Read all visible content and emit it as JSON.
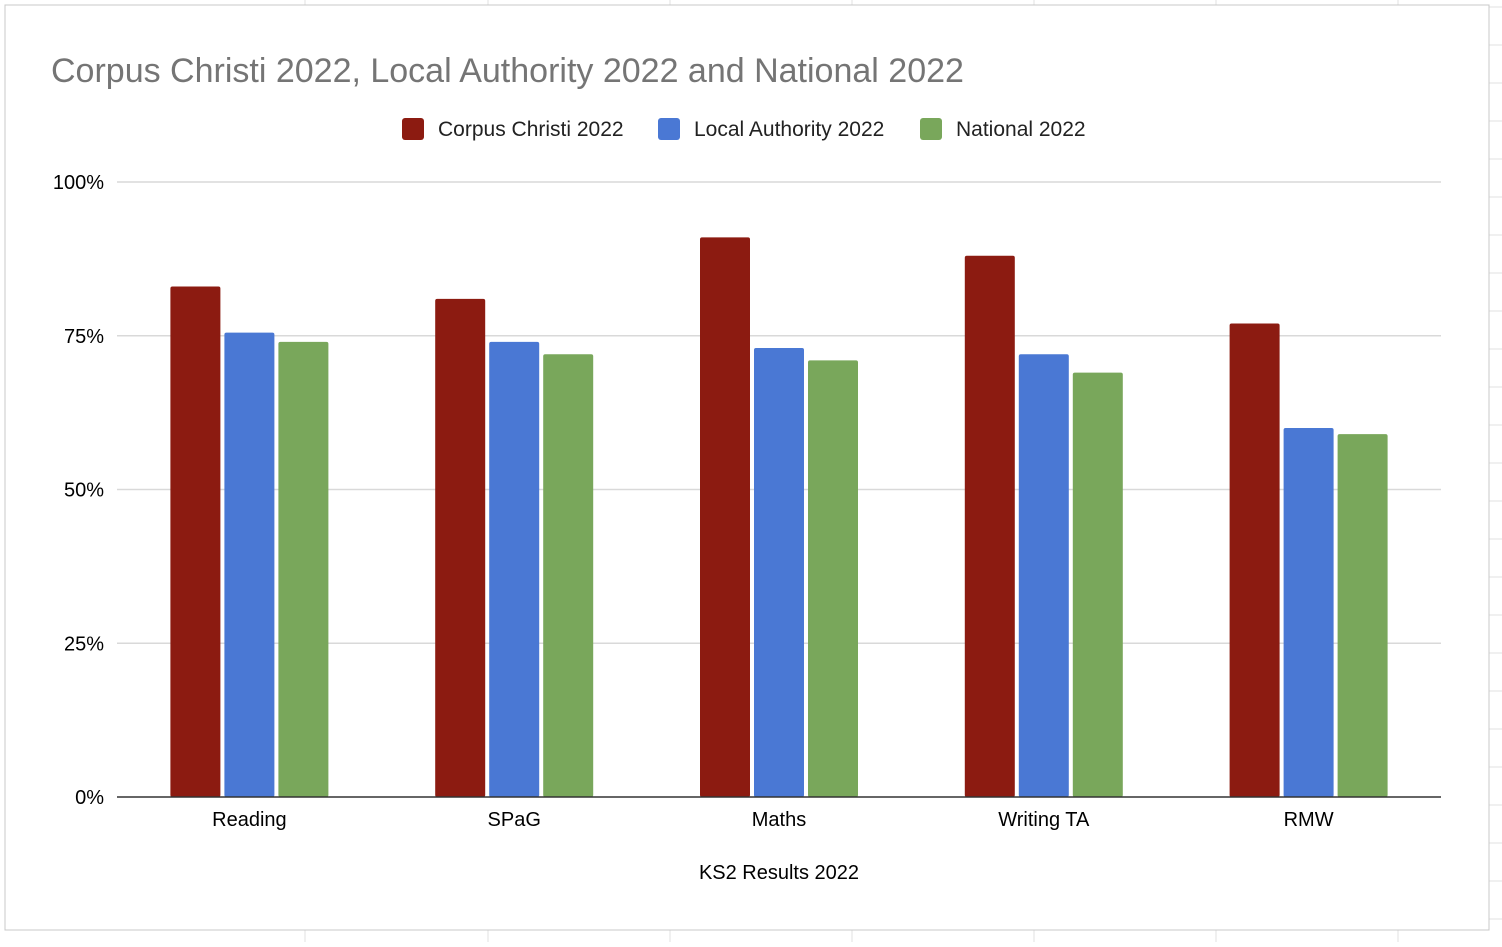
{
  "chart_data": {
    "type": "bar",
    "title": "Corpus Christi 2022, Local Authority 2022 and National 2022",
    "xlabel": "KS2 Results 2022",
    "ylabel": "",
    "categories": [
      "Reading",
      "SPaG",
      "Maths",
      "Writing TA",
      "RMW"
    ],
    "series": [
      {
        "name": "Corpus Christi 2022",
        "color": "#8c1b11",
        "values": [
          0.83,
          0.81,
          0.91,
          0.88,
          0.77
        ]
      },
      {
        "name": "Local Authority 2022",
        "color": "#4a78d4",
        "values": [
          0.755,
          0.74,
          0.73,
          0.72,
          0.6
        ]
      },
      {
        "name": "National 2022",
        "color": "#79a75b",
        "values": [
          0.74,
          0.72,
          0.71,
          0.69,
          0.59
        ]
      }
    ],
    "ylim": [
      0,
      1
    ],
    "yticks": [
      "0%",
      "25%",
      "50%",
      "75%",
      "100%"
    ],
    "grid": true,
    "legend_position": "top-center"
  }
}
